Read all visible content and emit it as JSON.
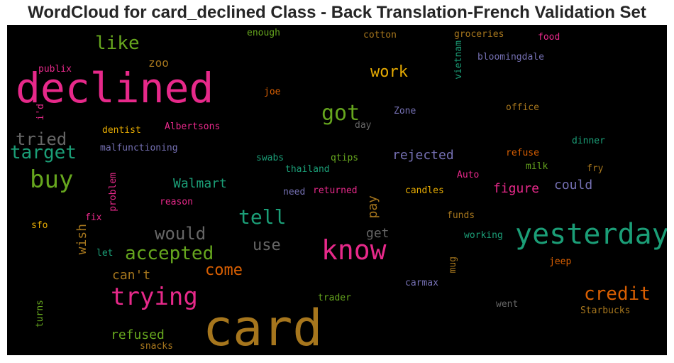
{
  "title": "WordCloud for card_declined Class - Back Translation-French Validation Set",
  "colors": {
    "background": "#000000",
    "palette": [
      "#e7298a",
      "#1b9e77",
      "#d95f02",
      "#7570b3",
      "#66a61e",
      "#e6ab02",
      "#a6761d",
      "#666666"
    ]
  },
  "words": [
    {
      "text": "declined",
      "color": "#e7298a"
    },
    {
      "text": "card",
      "color": "#a6761d"
    },
    {
      "text": "yesterday",
      "color": "#1b9e77"
    },
    {
      "text": "know",
      "color": "#e7298a"
    },
    {
      "text": "trying",
      "color": "#e7298a"
    },
    {
      "text": "buy",
      "color": "#66a61e"
    },
    {
      "text": "target",
      "color": "#1b9e77"
    },
    {
      "text": "tried",
      "color": "#666666"
    },
    {
      "text": "got",
      "color": "#66a61e"
    },
    {
      "text": "tell",
      "color": "#1b9e77"
    },
    {
      "text": "credit",
      "color": "#d95f02"
    },
    {
      "text": "accepted",
      "color": "#66a61e"
    },
    {
      "text": "would",
      "color": "#666666"
    },
    {
      "text": "like",
      "color": "#66a61e"
    },
    {
      "text": "work",
      "color": "#e6ab02"
    },
    {
      "text": "come",
      "color": "#d95f02"
    },
    {
      "text": "use",
      "color": "#666666"
    },
    {
      "text": "rejected",
      "color": "#7570b3"
    },
    {
      "text": "could",
      "color": "#7570b3"
    },
    {
      "text": "figure",
      "color": "#e7298a"
    },
    {
      "text": "Walmart",
      "color": "#1b9e77"
    },
    {
      "text": "refused",
      "color": "#66a61e"
    },
    {
      "text": "get",
      "color": "#666666"
    },
    {
      "text": "pay",
      "color": "#a6761d"
    },
    {
      "text": "wish",
      "color": "#a6761d"
    },
    {
      "text": "can't",
      "color": "#a6761d"
    },
    {
      "text": "zoo",
      "color": "#a6761d"
    },
    {
      "text": "enough",
      "color": "#66a61e"
    },
    {
      "text": "cotton",
      "color": "#a6761d"
    },
    {
      "text": "groceries",
      "color": "#a6761d"
    },
    {
      "text": "food",
      "color": "#e7298a"
    },
    {
      "text": "bloomingdale",
      "color": "#7570b3"
    },
    {
      "text": "vietnam",
      "color": "#1b9e77"
    },
    {
      "text": "publix",
      "color": "#e7298a"
    },
    {
      "text": "joe",
      "color": "#d95f02"
    },
    {
      "text": "i'd",
      "color": "#e7298a"
    },
    {
      "text": "Zone",
      "color": "#7570b3"
    },
    {
      "text": "office",
      "color": "#a6761d"
    },
    {
      "text": "day",
      "color": "#666666"
    },
    {
      "text": "dentist",
      "color": "#e6ab02"
    },
    {
      "text": "Albertsons",
      "color": "#e7298a"
    },
    {
      "text": "malfunctioning",
      "color": "#7570b3"
    },
    {
      "text": "dinner",
      "color": "#1b9e77"
    },
    {
      "text": "swabs",
      "color": "#1b9e77"
    },
    {
      "text": "qtips",
      "color": "#66a61e"
    },
    {
      "text": "refuse",
      "color": "#d95f02"
    },
    {
      "text": "thailand",
      "color": "#1b9e77"
    },
    {
      "text": "milk",
      "color": "#66a61e"
    },
    {
      "text": "fry",
      "color": "#a6761d"
    },
    {
      "text": "Auto",
      "color": "#e7298a"
    },
    {
      "text": "problem",
      "color": "#e7298a"
    },
    {
      "text": "need",
      "color": "#7570b3"
    },
    {
      "text": "returned",
      "color": "#e7298a"
    },
    {
      "text": "candles",
      "color": "#e6ab02"
    },
    {
      "text": "reason",
      "color": "#e7298a"
    },
    {
      "text": "fix",
      "color": "#e7298a"
    },
    {
      "text": "sfo",
      "color": "#e6ab02"
    },
    {
      "text": "funds",
      "color": "#a6761d"
    },
    {
      "text": "working",
      "color": "#1b9e77"
    },
    {
      "text": "let",
      "color": "#1b9e77"
    },
    {
      "text": "mug",
      "color": "#a6761d"
    },
    {
      "text": "jeep",
      "color": "#d95f02"
    },
    {
      "text": "carmax",
      "color": "#7570b3"
    },
    {
      "text": "trader",
      "color": "#66a61e"
    },
    {
      "text": "went",
      "color": "#666666"
    },
    {
      "text": "turns",
      "color": "#66a61e"
    },
    {
      "text": "Starbucks",
      "color": "#a6761d"
    },
    {
      "text": "snacks",
      "color": "#a6761d"
    }
  ]
}
